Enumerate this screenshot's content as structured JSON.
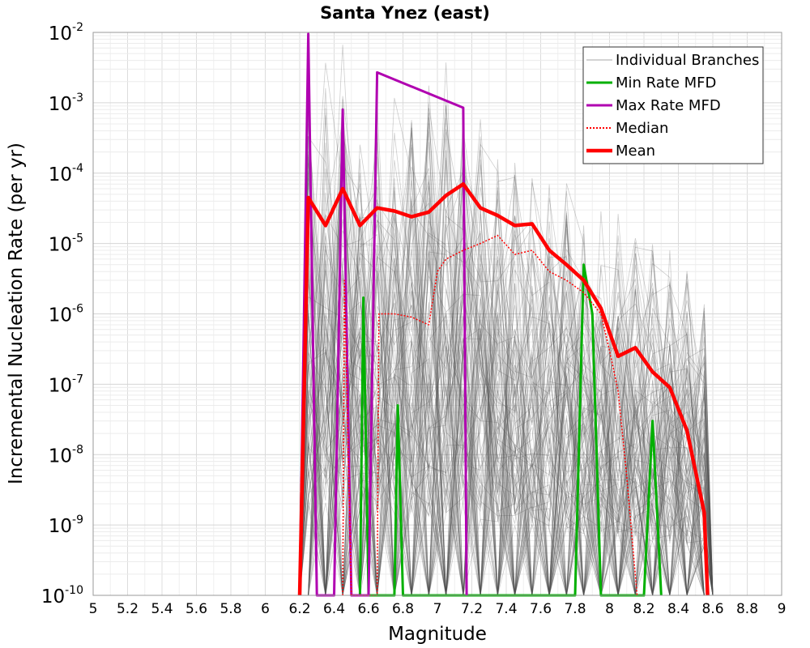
{
  "chart_data": {
    "type": "line",
    "title": "Santa Ynez (east)",
    "xlabel": "Magnitude",
    "ylabel": "Incremental Nucleation Rate (per yr)",
    "xlim": [
      5,
      9
    ],
    "ylim": [
      1e-10,
      0.01
    ],
    "yscale": "log",
    "grid": true,
    "legend_position": "top-right",
    "x_ticks": [
      "5",
      "5.2",
      "5.4",
      "5.6",
      "5.8",
      "6",
      "6.2",
      "6.4",
      "6.6",
      "6.8",
      "7",
      "7.2",
      "7.4",
      "7.6",
      "7.8",
      "8",
      "8.2",
      "8.4",
      "8.6",
      "8.8",
      "9"
    ],
    "y_ticks": [
      {
        "base": "10",
        "exp": "-10"
      },
      {
        "base": "10",
        "exp": "-9"
      },
      {
        "base": "10",
        "exp": "-8"
      },
      {
        "base": "10",
        "exp": "-7"
      },
      {
        "base": "10",
        "exp": "-6"
      },
      {
        "base": "10",
        "exp": "-5"
      },
      {
        "base": "10",
        "exp": "-4"
      },
      {
        "base": "10",
        "exp": "-3"
      },
      {
        "base": "10",
        "exp": "-2"
      }
    ],
    "series": [
      {
        "name": "Individual Branches",
        "color": "#505050",
        "style": "thin-translucent",
        "envelope_upper": [
          [
            6.25,
            0.0095
          ],
          [
            6.35,
            0.0095
          ],
          [
            6.45,
            0.008
          ],
          [
            6.55,
            0.006
          ],
          [
            6.65,
            0.004
          ],
          [
            6.75,
            0.0035
          ],
          [
            6.85,
            0.003
          ],
          [
            6.95,
            0.003
          ],
          [
            7.05,
            0.005
          ],
          [
            7.15,
            0.005
          ],
          [
            7.25,
            0.0015
          ],
          [
            7.35,
            0.0005
          ],
          [
            7.45,
            0.0002
          ],
          [
            7.55,
            0.00015
          ],
          [
            7.65,
            0.0001
          ],
          [
            7.75,
            8e-05
          ],
          [
            7.85,
            5e-05
          ],
          [
            7.95,
            4e-05
          ],
          [
            8.05,
            3e-05
          ],
          [
            8.15,
            2e-05
          ],
          [
            8.25,
            1e-05
          ],
          [
            8.35,
            8e-06
          ],
          [
            8.45,
            6e-06
          ],
          [
            8.55,
            3e-06
          ]
        ]
      },
      {
        "name": "Min Rate MFD",
        "color": "#00b000",
        "points": [
          [
            6.55,
            1e-10
          ],
          [
            6.57,
            1.7e-06
          ],
          [
            6.6,
            1e-10
          ],
          [
            6.75,
            1e-10
          ],
          [
            6.77,
            5e-08
          ],
          [
            6.8,
            1e-10
          ],
          [
            7.8,
            1e-10
          ],
          [
            7.85,
            5e-06
          ],
          [
            7.9,
            1e-06
          ],
          [
            7.95,
            1e-10
          ],
          [
            8.2,
            1e-10
          ],
          [
            8.25,
            3e-08
          ],
          [
            8.3,
            1e-10
          ]
        ]
      },
      {
        "name": "Max Rate MFD",
        "color": "#b000b0",
        "points": [
          [
            6.2,
            1e-10
          ],
          [
            6.25,
            0.0095
          ],
          [
            6.3,
            1e-10
          ],
          [
            6.4,
            1e-10
          ],
          [
            6.45,
            0.0008
          ],
          [
            6.5,
            1e-10
          ],
          [
            6.6,
            1e-10
          ],
          [
            6.65,
            0.0027
          ],
          [
            7.15,
            0.00085
          ],
          [
            7.17,
            1e-10
          ]
        ]
      },
      {
        "name": "Median",
        "color": "#ff0000",
        "style": "dotted",
        "points": [
          [
            6.45,
            1e-10
          ],
          [
            6.46,
            3e-06
          ],
          [
            6.5,
            1e-10
          ],
          [
            6.65,
            1e-10
          ],
          [
            6.66,
            1e-06
          ],
          [
            6.75,
            1e-06
          ],
          [
            6.85,
            9e-07
          ],
          [
            6.95,
            7e-07
          ],
          [
            7.0,
            4e-06
          ],
          [
            7.05,
            6e-06
          ],
          [
            7.15,
            8e-06
          ],
          [
            7.25,
            1e-05
          ],
          [
            7.35,
            1.3e-05
          ],
          [
            7.45,
            7e-06
          ],
          [
            7.55,
            8e-06
          ],
          [
            7.65,
            4e-06
          ],
          [
            7.75,
            3e-06
          ],
          [
            7.85,
            2e-06
          ],
          [
            7.95,
            1e-06
          ],
          [
            8.0,
            3e-07
          ],
          [
            8.05,
            8e-08
          ],
          [
            8.1,
            5e-09
          ],
          [
            8.16,
            1e-10
          ]
        ]
      },
      {
        "name": "Mean",
        "color": "#ff0000",
        "style": "thick",
        "points": [
          [
            6.2,
            1e-10
          ],
          [
            6.25,
            4.5e-05
          ],
          [
            6.35,
            1.8e-05
          ],
          [
            6.45,
            6e-05
          ],
          [
            6.55,
            1.8e-05
          ],
          [
            6.65,
            3.2e-05
          ],
          [
            6.75,
            2.9e-05
          ],
          [
            6.85,
            2.4e-05
          ],
          [
            6.95,
            2.8e-05
          ],
          [
            7.05,
            4.8e-05
          ],
          [
            7.15,
            7e-05
          ],
          [
            7.25,
            3.2e-05
          ],
          [
            7.35,
            2.5e-05
          ],
          [
            7.45,
            1.8e-05
          ],
          [
            7.55,
            1.9e-05
          ],
          [
            7.65,
            8e-06
          ],
          [
            7.75,
            5e-06
          ],
          [
            7.85,
            3e-06
          ],
          [
            7.95,
            1.2e-06
          ],
          [
            8.05,
            2.5e-07
          ],
          [
            8.15,
            3.3e-07
          ],
          [
            8.25,
            1.5e-07
          ],
          [
            8.35,
            9e-08
          ],
          [
            8.45,
            2.2e-08
          ],
          [
            8.55,
            1.5e-09
          ],
          [
            8.57,
            1e-10
          ]
        ]
      }
    ]
  }
}
